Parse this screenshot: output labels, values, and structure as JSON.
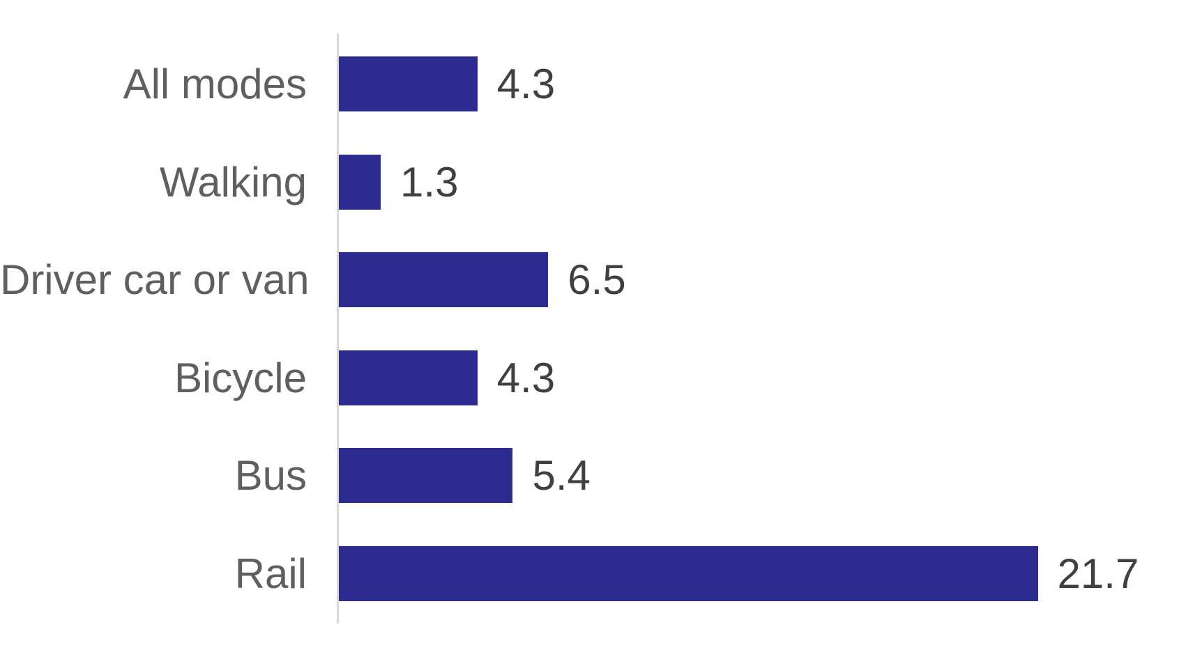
{
  "chart_data": {
    "type": "bar",
    "orientation": "horizontal",
    "title": "",
    "xlabel": "",
    "ylabel": "",
    "categories": [
      "All modes",
      "Walking",
      "Driver car or van",
      "Bicycle",
      "Bus",
      "Rail"
    ],
    "values": [
      4.3,
      1.3,
      6.5,
      4.3,
      5.4,
      21.7
    ],
    "value_labels": [
      "4.3",
      "1.3",
      "6.5",
      "4.3",
      "5.4",
      "21.7"
    ],
    "xlim": [
      0,
      26
    ],
    "grid": false,
    "legend": false,
    "data_labels_position": "outside-end",
    "colors": {
      "bar": "#2B2B90",
      "category_label": "#5f5f5f",
      "value_label": "#404040",
      "axis_line": "#d9d9d9"
    }
  }
}
